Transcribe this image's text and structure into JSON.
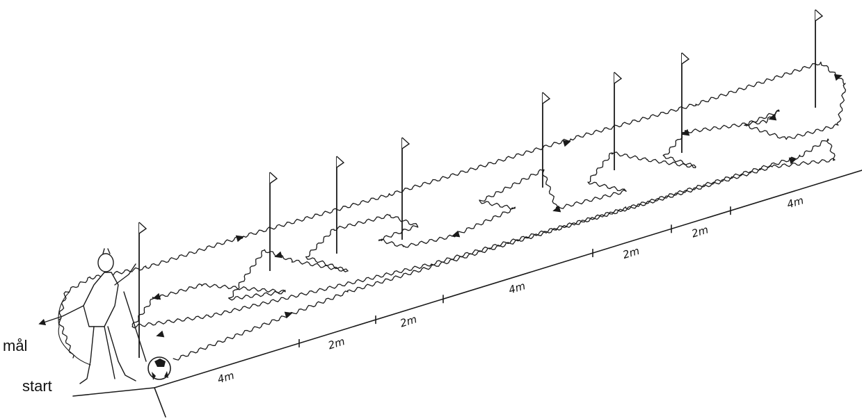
{
  "labels": {
    "goal": "mål",
    "start": "start"
  },
  "distances": [
    "4m",
    "2m",
    "2m",
    "4m",
    "2m",
    "2m",
    "4m"
  ],
  "flags": {
    "count": 8
  },
  "colors": {
    "ink": "#1a1a1a",
    "background": "#ffffff"
  }
}
